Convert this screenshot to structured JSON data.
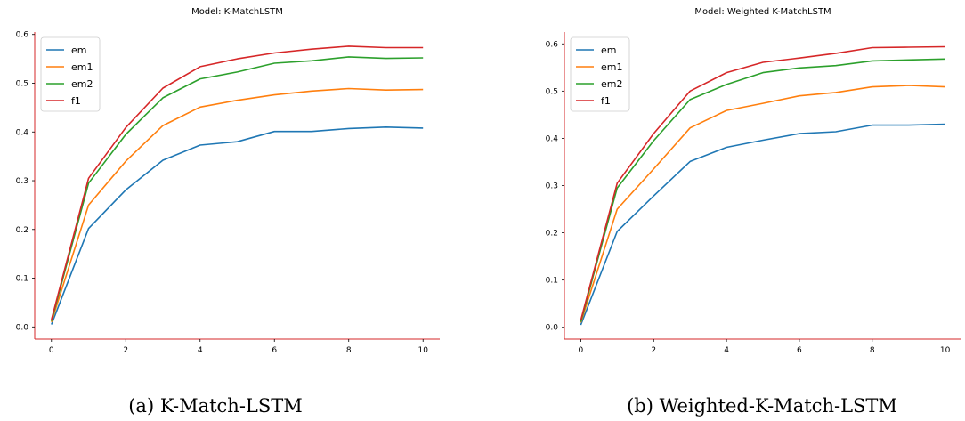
{
  "chart_data": [
    {
      "type": "line",
      "title": "Model: K-MatchLSTM",
      "caption": "(a) K-Match-LSTM",
      "xlabel": "",
      "ylabel": "",
      "x": [
        0,
        1,
        2,
        3,
        4,
        5,
        6,
        7,
        8,
        9,
        10
      ],
      "xticks": [
        0,
        2,
        4,
        6,
        8,
        10
      ],
      "yticks": [
        0.0,
        0.1,
        0.2,
        0.3,
        0.4,
        0.5,
        0.6
      ],
      "xlim": [
        -0.45,
        10.45
      ],
      "ylim": [
        -0.025,
        0.605
      ],
      "grid": false,
      "legend_position": "top-left",
      "series": [
        {
          "name": "em",
          "color": "#1f77b4",
          "values": [
            0.005,
            0.202,
            0.281,
            0.342,
            0.373,
            0.38,
            0.401,
            0.401,
            0.407,
            0.41,
            0.408
          ]
        },
        {
          "name": "em1",
          "color": "#ff7f0e",
          "values": [
            0.01,
            0.25,
            0.34,
            0.413,
            0.451,
            0.465,
            0.476,
            0.484,
            0.489,
            0.486,
            0.487
          ]
        },
        {
          "name": "em2",
          "color": "#2ca02c",
          "values": [
            0.012,
            0.295,
            0.395,
            0.47,
            0.509,
            0.523,
            0.541,
            0.546,
            0.554,
            0.551,
            0.552
          ]
        },
        {
          "name": "f1",
          "color": "#d62728",
          "values": [
            0.015,
            0.305,
            0.409,
            0.49,
            0.534,
            0.55,
            0.562,
            0.57,
            0.576,
            0.573,
            0.573
          ]
        }
      ]
    },
    {
      "type": "line",
      "title": "Model: Weighted K-MatchLSTM",
      "caption": "(b) Weighted-K-Match-LSTM",
      "xlabel": "",
      "ylabel": "",
      "x": [
        0,
        1,
        2,
        3,
        4,
        5,
        6,
        7,
        8,
        9,
        10
      ],
      "xticks": [
        0,
        2,
        4,
        6,
        8,
        10
      ],
      "yticks": [
        0.0,
        0.1,
        0.2,
        0.3,
        0.4,
        0.5,
        0.6
      ],
      "xlim": [
        -0.45,
        10.45
      ],
      "ylim": [
        -0.025,
        0.625
      ],
      "grid": false,
      "legend_position": "top-left",
      "series": [
        {
          "name": "em",
          "color": "#1f77b4",
          "values": [
            0.005,
            0.203,
            0.278,
            0.351,
            0.381,
            0.396,
            0.41,
            0.414,
            0.428,
            0.428,
            0.43
          ]
        },
        {
          "name": "em1",
          "color": "#ff7f0e",
          "values": [
            0.01,
            0.25,
            0.335,
            0.422,
            0.459,
            0.474,
            0.49,
            0.497,
            0.509,
            0.512,
            0.509
          ]
        },
        {
          "name": "em2",
          "color": "#2ca02c",
          "values": [
            0.012,
            0.295,
            0.395,
            0.482,
            0.514,
            0.539,
            0.549,
            0.554,
            0.564,
            0.566,
            0.568
          ]
        },
        {
          "name": "f1",
          "color": "#d62728",
          "values": [
            0.015,
            0.305,
            0.41,
            0.5,
            0.539,
            0.561,
            0.57,
            0.58,
            0.592,
            0.593,
            0.594
          ]
        }
      ]
    }
  ]
}
